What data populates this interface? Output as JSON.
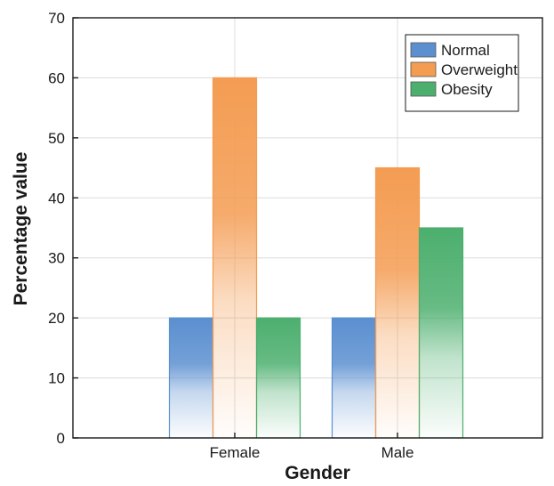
{
  "chart_data": {
    "type": "bar",
    "title": "",
    "xlabel": "Gender",
    "ylabel": "Percentage value",
    "categories": [
      "Female",
      "Male"
    ],
    "series": [
      {
        "name": "Normal",
        "values": [
          20,
          20
        ],
        "color": "#5b8fd0"
      },
      {
        "name": "Overweight",
        "values": [
          60,
          45
        ],
        "color": "#f49c52"
      },
      {
        "name": "Obesity",
        "values": [
          20,
          35
        ],
        "color": "#4caf6e"
      }
    ],
    "ylim": [
      0,
      70
    ],
    "yticks": [
      0,
      10,
      20,
      30,
      40,
      50,
      60,
      70
    ],
    "grid": true,
    "legend_position": "top-right",
    "bar_fill": "vertical gradient, saturated at top fading to white at bottom"
  }
}
